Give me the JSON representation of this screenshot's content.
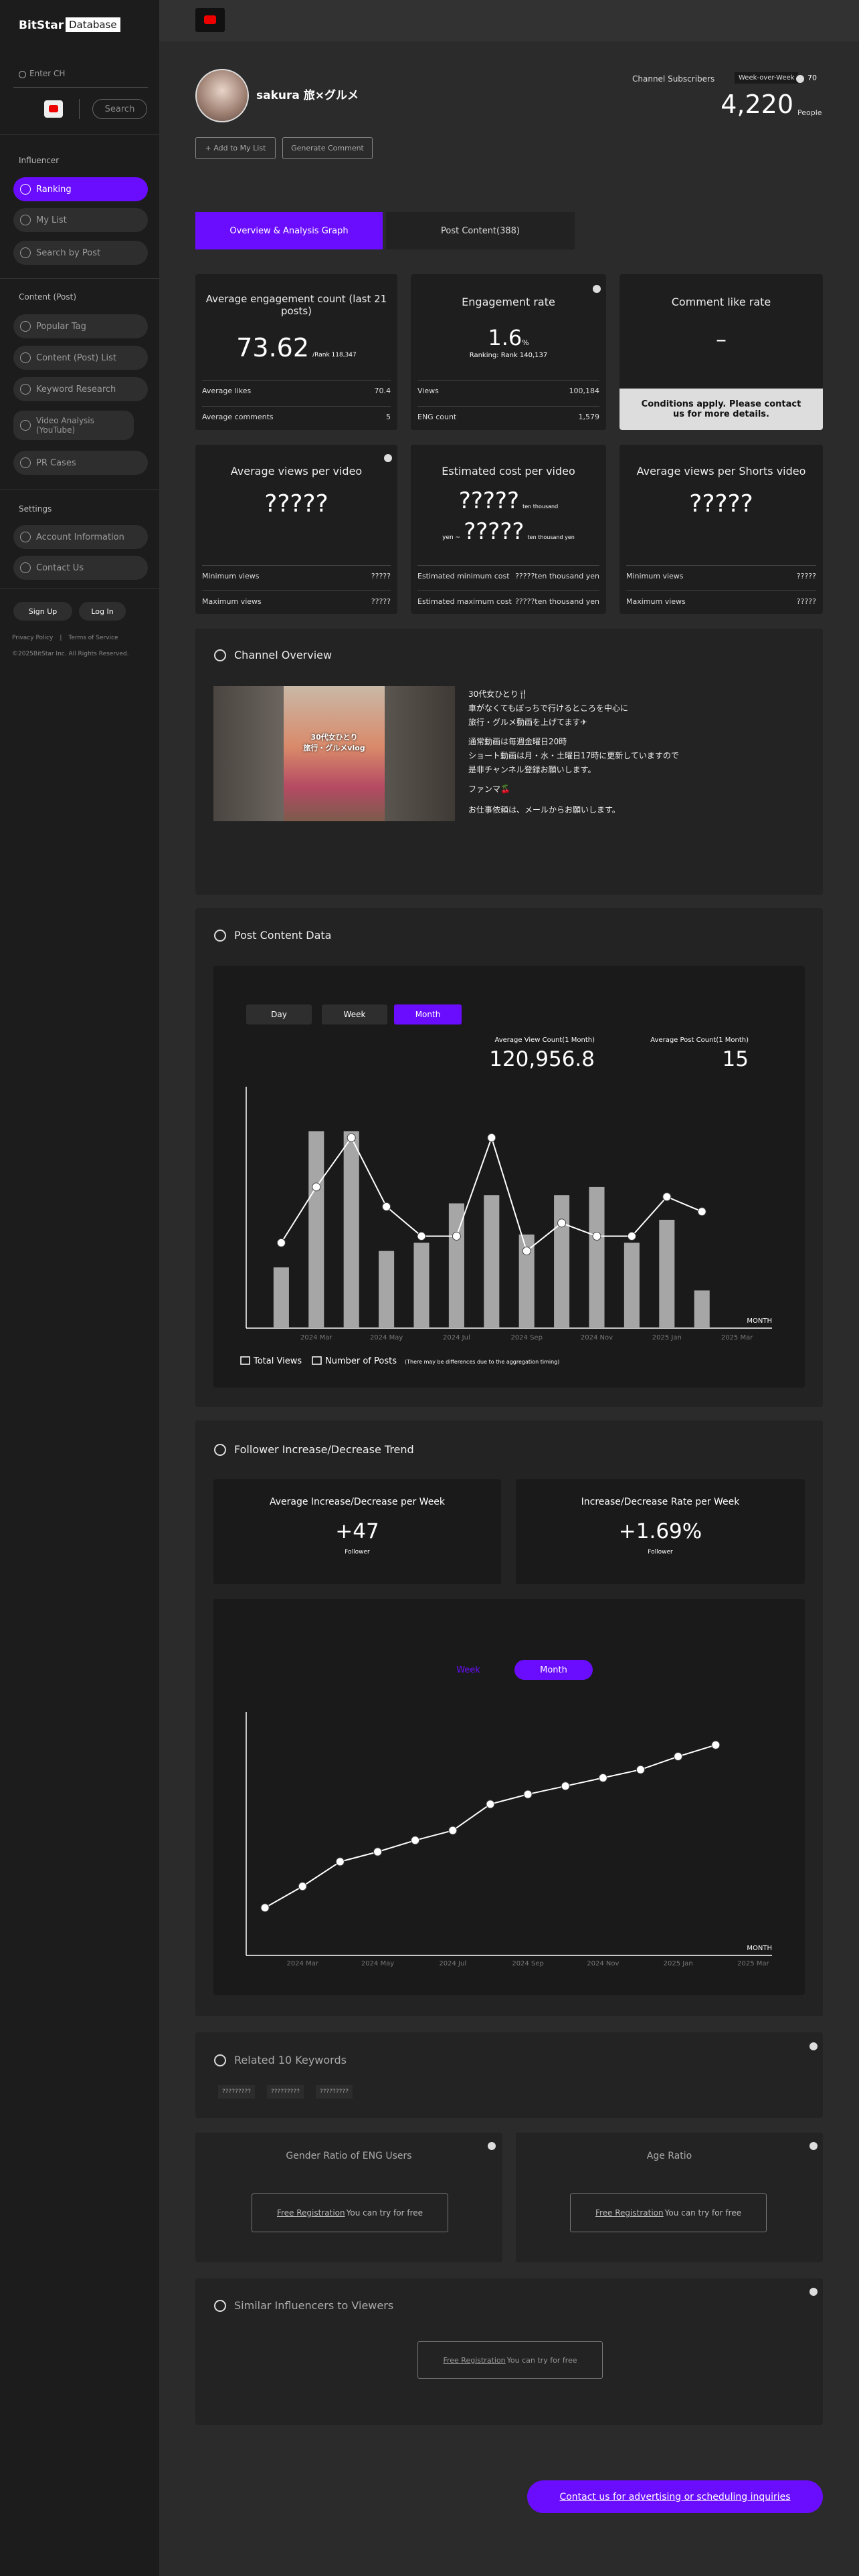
{
  "sidebar": {
    "logo": {
      "brand": "BitStar",
      "product": "Database"
    },
    "search_placeholder": "Enter CH",
    "search_button": "Search",
    "groups": [
      {
        "heading": "Influencer",
        "items": [
          "Ranking",
          "My List",
          "Search by Post"
        ]
      },
      {
        "heading": "Content (Post)",
        "items": [
          "Popular Tag",
          "Content (Post) List",
          "Keyword Research",
          "Video Analysis (YouTube)",
          "PR Cases"
        ]
      },
      {
        "heading": "Settings",
        "items": [
          "Account Information",
          "Contact Us"
        ]
      }
    ],
    "sign_up": "Sign Up",
    "log_in": "Log In",
    "privacy_policy": "Privacy Policy",
    "divider": "|",
    "terms": "Terms of Service",
    "copyright": "©2025BitStar Inc. All Rights Reserved."
  },
  "profile": {
    "name": "sakura 旅×グルメ",
    "subscribers_label": "Channel Subscribers",
    "week_over_week_label": "Week-over-Week",
    "week_over_week": "70",
    "subscribers": "4,220",
    "subscribers_unit": "People",
    "add_to_list": "+ Add to My List",
    "generate_comment": "Generate Comment"
  },
  "tabs": [
    "Overview & Analysis Graph",
    "Post Content(388)"
  ],
  "metrics": [
    {
      "title": "Average engagement count (last 21 posts)",
      "value": "73.62",
      "sub": "/Rank 118,347",
      "rows": [
        [
          "Average likes",
          "70.4"
        ],
        [
          "Average comments",
          "5"
        ]
      ]
    },
    {
      "title": "Engagement rate",
      "value": "1.6",
      "unit": "%",
      "sub": "Ranking: Rank 140,137",
      "rows": [
        [
          "Views",
          "100,184"
        ],
        [
          "ENG count",
          "1,579"
        ]
      ]
    },
    {
      "title": "Comment like rate",
      "value": "–",
      "notice": "Conditions apply. Please contact us for more details."
    },
    {
      "title": "Average views per video",
      "value": "?????",
      "rows": [
        [
          "Minimum views",
          "?????"
        ],
        [
          "Maximum views",
          "?????"
        ]
      ]
    },
    {
      "title": "Estimated cost per video",
      "value": "?????",
      "unit": "ten thousand",
      "prefix2": "yen ~",
      "value2": "?????",
      "unit2": "ten thousand yen",
      "rows": [
        [
          "Estimated minimum cost",
          "?????ten thousand yen"
        ],
        [
          "Estimated maximum cost",
          "?????ten thousand yen"
        ]
      ]
    },
    {
      "title": "Average views per Shorts video",
      "value": "?????",
      "rows": [
        [
          "Minimum views",
          "?????"
        ],
        [
          "Maximum views",
          "?????"
        ]
      ]
    }
  ],
  "channel_overview": {
    "title": "Channel Overview",
    "thumbnail_text": [
      "30代女ひとり",
      "旅行・グルメvlog"
    ],
    "description": [
      "30代女ひとり🍴",
      "車がなくてもぼっちで行けるところを中心に",
      "旅行・グルメ動画を上げてます✈",
      "通常動画は毎週金曜日20時",
      "ショート動画は月・水・土曜日17時に更新していますので",
      "是非チャンネル登録お願いします。",
      "ファンマ🍒",
      "お仕事依頼は、メールからお願いします。"
    ]
  },
  "post_content": {
    "title": "Post Content Data",
    "periods": [
      "Day",
      "Week",
      "Month"
    ],
    "avg_views_label": "Average View Count(1 Month)",
    "avg_views": "120,956.8",
    "avg_posts_label": "Average Post Count(1 Month)",
    "avg_posts": "15"
  },
  "follower": {
    "title": "Follower Increase/Decrease Trend",
    "cards": [
      {
        "label": "Average Increase/Decrease per Week",
        "value": "+47",
        "unit": "Follower"
      },
      {
        "label": "Increase/Decrease Rate per Week",
        "value": "+1.69%",
        "unit": "Follower"
      }
    ],
    "periods": [
      "Week",
      "Month"
    ]
  },
  "keywords": {
    "title": "Related 10 Keywords",
    "items": [
      "?????????",
      "?????????",
      "?????????"
    ]
  },
  "gender": {
    "title": "Gender Ratio of ENG Users",
    "link": "Free Registration",
    "note": "You can try for free"
  },
  "age": {
    "title": "Age Ratio",
    "link": "Free Registration",
    "note": "You can try for free"
  },
  "similar": {
    "title": "Similar Influencers to Viewers",
    "link": "Free Registration",
    "note": "You can try for free"
  },
  "contact": "Contact us for advertising or scheduling inquiries",
  "chart_data": [
    {
      "type": "bar",
      "x_label": "MONTH",
      "categories": [
        null,
        "2024 Mar",
        null,
        "2024 May",
        null,
        "2024 Jul",
        null,
        "2024 Sep",
        null,
        "2024 Nov",
        null,
        "2025 Jan",
        null,
        "2025 Mar"
      ],
      "series": [
        {
          "name": "Total Views",
          "type": "bar",
          "color": "#a6a6a6",
          "values": [
            37,
            120,
            120,
            47,
            52,
            76,
            81,
            57,
            81,
            86,
            52,
            66,
            23,
            null
          ]
        },
        {
          "name": "Number of Posts",
          "type": "line",
          "color": "#ffffff",
          "values": [
            52,
            86,
            116,
            74,
            56,
            56,
            116,
            47,
            64,
            56,
            56,
            80,
            71,
            null
          ]
        }
      ],
      "note": "(There may be differences due to the aggregation timing)",
      "ylim": [
        0,
        143
      ]
    },
    {
      "type": "line",
      "x_label": "MONTH",
      "categories": [
        null,
        "2024 Mar",
        null,
        "2024 May",
        null,
        "2024 Jul",
        null,
        "2024 Sep",
        null,
        "2024 Nov",
        null,
        "2025 Jan",
        null,
        "2025 Mar"
      ],
      "values": [
        29,
        42,
        57,
        63,
        70,
        76,
        92,
        98,
        103,
        108,
        113,
        121,
        128,
        null
      ],
      "color": "#ffffff",
      "ylim": [
        0,
        144
      ]
    }
  ]
}
